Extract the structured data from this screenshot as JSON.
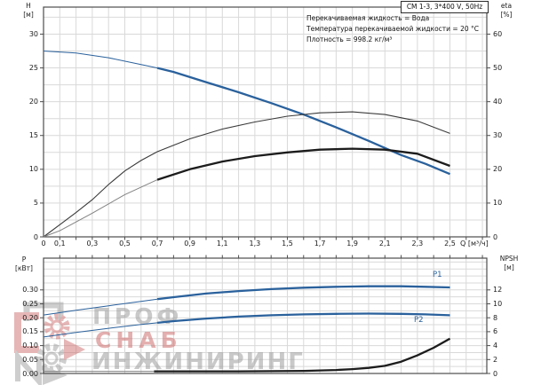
{
  "title_box": {
    "text": "CM 1-3, 3*400 V, 50Hz"
  },
  "conditions": {
    "line1": "Перекачиваемая жидкость = Вода",
    "line2": "Температура перекачиваемой жидкости = 20 °C",
    "line3": "Плотность = 998.2 кг/м³"
  },
  "watermark": {
    "word1": "ПРОФ",
    "word2": "СНАБ",
    "word3": "ИНЖИНИРИНГ",
    "gray": "#9e9e9e",
    "red": "#cf6f6f",
    "opacity": 0.55
  },
  "colors": {
    "curve_blue": "#2a619c",
    "curve_black": "#1c1c1c",
    "curve_thin_gray": "#828282",
    "eta_thin": "#3a3a3a",
    "grid": "#d9d9d9",
    "border": "#4d4d4d",
    "text": "#1b1b1b",
    "blue_label": "#2a619c"
  },
  "chart_data": [
    {
      "type": "line",
      "name": "qh-eta-chart",
      "x_axis": {
        "label": "Q [м³/ч]",
        "min": 0,
        "max": 2.727,
        "grid_step": 0.1,
        "tick_step": 0.1,
        "ticks": [
          {
            "v": 0,
            "t": "0"
          },
          {
            "v": 0.1,
            "t": "0,1"
          },
          {
            "v": 0.3,
            "t": "0,3"
          },
          {
            "v": 0.5,
            "t": "0,5"
          },
          {
            "v": 0.7,
            "t": "0,7"
          },
          {
            "v": 0.9,
            "t": "0,9"
          },
          {
            "v": 1.1,
            "t": "1,1"
          },
          {
            "v": 1.3,
            "t": "1,3"
          },
          {
            "v": 1.5,
            "t": "1,5"
          },
          {
            "v": 1.7,
            "t": "1,7"
          },
          {
            "v": 1.9,
            "t": "1,9"
          },
          {
            "v": 2.1,
            "t": "2,1"
          },
          {
            "v": 2.3,
            "t": "2,3"
          },
          {
            "v": 2.5,
            "t": "2,5"
          }
        ]
      },
      "y_left": {
        "name": "H",
        "unit": "[м]",
        "min": 0,
        "max": 34,
        "grid_step": 2.5,
        "ticks": [
          {
            "v": 0,
            "t": "0"
          },
          {
            "v": 5,
            "t": "5"
          },
          {
            "v": 10,
            "t": "10"
          },
          {
            "v": 15,
            "t": "15"
          },
          {
            "v": 20,
            "t": "20"
          },
          {
            "v": 25,
            "t": "25"
          },
          {
            "v": 30,
            "t": "30"
          }
        ]
      },
      "y_right": {
        "name": "eta",
        "unit": "[%]",
        "min": 0,
        "max": 68,
        "ticks": [
          {
            "v": 0,
            "t": "0"
          },
          {
            "v": 10,
            "t": "10"
          },
          {
            "v": 20,
            "t": "20"
          },
          {
            "v": 30,
            "t": "30"
          },
          {
            "v": 40,
            "t": "40"
          },
          {
            "v": 50,
            "t": "50"
          },
          {
            "v": 60,
            "t": "60"
          }
        ]
      },
      "series": [
        {
          "name": "H-curve",
          "axis": "left",
          "color": "blue",
          "thick_from": 0.7,
          "points": [
            [
              0,
              27.5
            ],
            [
              0.2,
              27.2
            ],
            [
              0.4,
              26.5
            ],
            [
              0.6,
              25.5
            ],
            [
              0.7,
              25.0
            ],
            [
              0.8,
              24.4
            ],
            [
              1.0,
              22.9
            ],
            [
              1.2,
              21.4
            ],
            [
              1.4,
              19.8
            ],
            [
              1.6,
              18.1
            ],
            [
              1.8,
              16.2
            ],
            [
              2.0,
              14.2
            ],
            [
              2.2,
              12.1
            ],
            [
              2.35,
              10.8
            ],
            [
              2.5,
              9.3
            ]
          ]
        },
        {
          "name": "eta-pump-curve",
          "axis": "right",
          "color": "black",
          "always_thin": true,
          "points": [
            [
              0,
              0
            ],
            [
              0.1,
              3.6
            ],
            [
              0.2,
              7.2
            ],
            [
              0.3,
              11
            ],
            [
              0.4,
              15.5
            ],
            [
              0.5,
              19.5
            ],
            [
              0.6,
              22.6
            ],
            [
              0.7,
              25.2
            ],
            [
              0.9,
              29
            ],
            [
              1.1,
              31.9
            ],
            [
              1.3,
              34
            ],
            [
              1.5,
              35.7
            ],
            [
              1.7,
              36.7
            ],
            [
              1.9,
              37
            ],
            [
              2.1,
              36.2
            ],
            [
              2.3,
              34.3
            ],
            [
              2.5,
              30.6
            ]
          ]
        },
        {
          "name": "eta-pump-motor-curve",
          "axis": "right",
          "color": "black",
          "thick_from": 0.7,
          "points": [
            [
              0,
              0
            ],
            [
              0.1,
              1.8
            ],
            [
              0.3,
              7
            ],
            [
              0.5,
              12.5
            ],
            [
              0.7,
              16.9
            ],
            [
              0.9,
              20
            ],
            [
              1.1,
              22.3
            ],
            [
              1.3,
              23.9
            ],
            [
              1.5,
              25
            ],
            [
              1.7,
              25.8
            ],
            [
              1.9,
              26.1
            ],
            [
              2.1,
              25.8
            ],
            [
              2.3,
              24.6
            ],
            [
              2.5,
              21
            ]
          ]
        }
      ]
    },
    {
      "type": "line",
      "name": "power-npsh-chart",
      "x_axis": {
        "label": "",
        "min": 0,
        "max": 2.727,
        "grid_step": 0.1,
        "tick_step": 0.1,
        "ticks": []
      },
      "y_left": {
        "name": "P",
        "unit": "[кВт]",
        "min": 0,
        "max": 0.414,
        "grid_step": 0.025,
        "ticks": [
          {
            "v": 0,
            "t": "0.00"
          },
          {
            "v": 0.05,
            "t": "0.05"
          },
          {
            "v": 0.1,
            "t": "0.10"
          },
          {
            "v": 0.15,
            "t": "0.15"
          },
          {
            "v": 0.2,
            "t": "0.20"
          },
          {
            "v": 0.25,
            "t": "0.25"
          },
          {
            "v": 0.3,
            "t": "0.30"
          }
        ]
      },
      "y_right": {
        "name": "NPSH",
        "unit": "[м]",
        "min": 0,
        "max": 16.56,
        "ticks": [
          {
            "v": 0,
            "t": "0"
          },
          {
            "v": 2,
            "t": "2"
          },
          {
            "v": 4,
            "t": "4"
          },
          {
            "v": 6,
            "t": "6"
          },
          {
            "v": 8,
            "t": "8"
          },
          {
            "v": 10,
            "t": "10"
          },
          {
            "v": 12,
            "t": "12"
          }
        ]
      },
      "series": [
        {
          "name": "P1-curve",
          "label": "P1",
          "axis": "left",
          "color": "blue",
          "thick_from": 0.7,
          "points": [
            [
              0,
              0.21
            ],
            [
              0.2,
              0.227
            ],
            [
              0.4,
              0.243
            ],
            [
              0.6,
              0.259
            ],
            [
              0.7,
              0.267
            ],
            [
              0.8,
              0.274
            ],
            [
              1.0,
              0.287
            ],
            [
              1.2,
              0.296
            ],
            [
              1.4,
              0.303
            ],
            [
              1.6,
              0.308
            ],
            [
              1.8,
              0.311
            ],
            [
              2.0,
              0.313
            ],
            [
              2.2,
              0.313
            ],
            [
              2.35,
              0.311
            ],
            [
              2.5,
              0.309
            ]
          ]
        },
        {
          "name": "P2-curve",
          "label": "P2",
          "axis": "left",
          "color": "blue",
          "thick_from": 0.7,
          "points": [
            [
              0,
              0.131
            ],
            [
              0.2,
              0.147
            ],
            [
              0.4,
              0.162
            ],
            [
              0.6,
              0.176
            ],
            [
              0.7,
              0.182
            ],
            [
              0.8,
              0.188
            ],
            [
              1.0,
              0.197
            ],
            [
              1.2,
              0.204
            ],
            [
              1.4,
              0.209
            ],
            [
              1.6,
              0.212
            ],
            [
              1.8,
              0.214
            ],
            [
              2.0,
              0.215
            ],
            [
              2.2,
              0.214
            ],
            [
              2.35,
              0.212
            ],
            [
              2.5,
              0.209
            ]
          ]
        },
        {
          "name": "NPSH-curve",
          "axis": "right",
          "color": "black",
          "thick_from": 0.68,
          "points": [
            [
              0,
              0.3
            ],
            [
              0.4,
              0.3
            ],
            [
              0.68,
              0.3
            ],
            [
              1.0,
              0.3
            ],
            [
              1.2,
              0.31
            ],
            [
              1.4,
              0.33
            ],
            [
              1.6,
              0.37
            ],
            [
              1.7,
              0.43
            ],
            [
              1.8,
              0.5
            ],
            [
              1.9,
              0.62
            ],
            [
              2.0,
              0.8
            ],
            [
              2.1,
              1.1
            ],
            [
              2.2,
              1.7
            ],
            [
              2.3,
              2.6
            ],
            [
              2.4,
              3.7
            ],
            [
              2.5,
              5.0
            ]
          ]
        }
      ]
    }
  ]
}
